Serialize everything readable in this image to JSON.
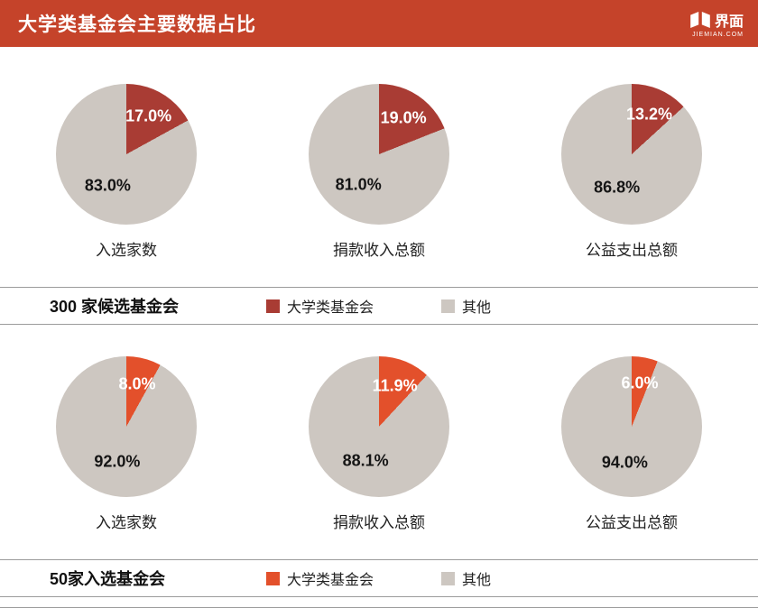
{
  "header": {
    "title": "大学类基金会主要数据占比",
    "logo_name": "界面",
    "logo_domain": "JIEMIAN.COM"
  },
  "colors": {
    "header_bg": "#c5432a",
    "candidate_red": "#a93c34",
    "selected_orange": "#e3502b",
    "other_gray": "#cdc7c1"
  },
  "chart_data": [
    {
      "type": "pie",
      "group_title": "300 家候选基金会",
      "slice_color": "#a93c34",
      "other_color": "#cdc7c1",
      "legend": {
        "main": "大学类基金会",
        "other": "其他"
      },
      "pies": [
        {
          "label": "入选家数",
          "main_pct": 17.0,
          "other_pct": 83.0,
          "main_text": "17.0%",
          "other_text": "83.0%"
        },
        {
          "label": "捐款收入总额",
          "main_pct": 19.0,
          "other_pct": 81.0,
          "main_text": "19.0%",
          "other_text": "81.0%"
        },
        {
          "label": "公益支出总额",
          "main_pct": 13.2,
          "other_pct": 86.8,
          "main_text": "13.2%",
          "other_text": "86.8%"
        }
      ]
    },
    {
      "type": "pie",
      "group_title": "50家入选基金会",
      "slice_color": "#e3502b",
      "other_color": "#cdc7c1",
      "legend": {
        "main": "大学类基金会",
        "other": "其他"
      },
      "pies": [
        {
          "label": "入选家数",
          "main_pct": 8.0,
          "other_pct": 92.0,
          "main_text": "8.0%",
          "other_text": "92.0%"
        },
        {
          "label": "捐款收入总额",
          "main_pct": 11.9,
          "other_pct": 88.1,
          "main_text": "11.9%",
          "other_text": "88.1%"
        },
        {
          "label": "公益支出总额",
          "main_pct": 6.0,
          "other_pct": 94.0,
          "main_text": "6.0%",
          "other_text": "94.0%"
        }
      ]
    }
  ]
}
